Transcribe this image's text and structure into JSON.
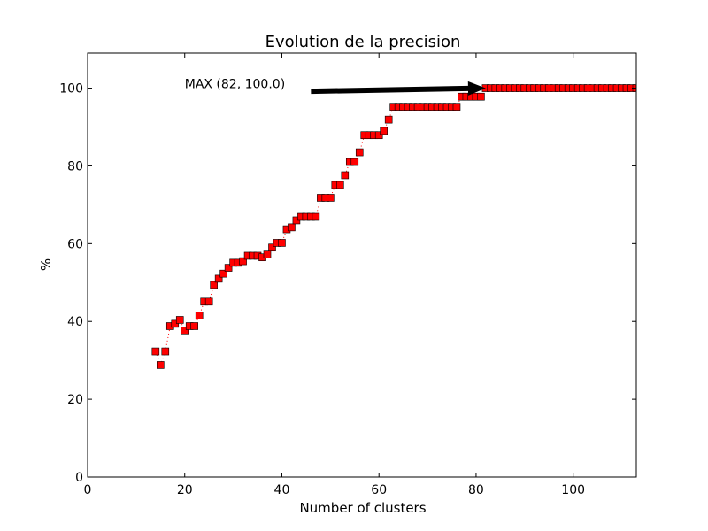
{
  "chart_data": {
    "type": "scatter",
    "title": "Evolution de la precision",
    "xlabel": "Number of clusters",
    "ylabel": "%",
    "xlim": [
      0,
      113
    ],
    "ylim": [
      0,
      109
    ],
    "xticks": [
      0,
      20,
      40,
      60,
      80,
      100
    ],
    "yticks": [
      0,
      20,
      40,
      60,
      80,
      100
    ],
    "grid": false,
    "marker_color": "#ff0000",
    "line_color": "#ff0000",
    "line_style": "dotted",
    "annotation": {
      "text": "MAX (82, 100.0)",
      "xy": [
        82,
        100.0
      ],
      "text_xy": [
        20,
        100.0
      ],
      "arrow_start": [
        46,
        99.2
      ]
    },
    "x": [
      14,
      15,
      16,
      17,
      18,
      19,
      20,
      21,
      22,
      23,
      24,
      25,
      26,
      27,
      28,
      29,
      30,
      31,
      32,
      33,
      34,
      35,
      36,
      37,
      38,
      39,
      40,
      41,
      42,
      43,
      44,
      45,
      46,
      47,
      48,
      49,
      50,
      51,
      52,
      53,
      54,
      55,
      56,
      57,
      58,
      59,
      60,
      61,
      62,
      63,
      64,
      65,
      66,
      67,
      68,
      69,
      70,
      71,
      72,
      73,
      74,
      75,
      76,
      77,
      78,
      79,
      80,
      81,
      82,
      83,
      84,
      85,
      86,
      87,
      88,
      89,
      90,
      91,
      92,
      93,
      94,
      95,
      96,
      97,
      98,
      99,
      100,
      101,
      102,
      103,
      104,
      105,
      106,
      107,
      108,
      109,
      110,
      111,
      112,
      113
    ],
    "y": [
      32.3,
      28.8,
      32.3,
      38.8,
      39.4,
      40.4,
      37.7,
      38.8,
      38.8,
      41.5,
      45.1,
      45.1,
      49.4,
      51.0,
      52.3,
      53.8,
      55.1,
      55.1,
      55.5,
      56.9,
      56.9,
      56.9,
      56.5,
      57.2,
      59.0,
      60.2,
      60.2,
      63.7,
      64.2,
      66.0,
      66.9,
      66.9,
      66.9,
      66.9,
      71.8,
      71.8,
      71.8,
      75.1,
      75.1,
      77.6,
      81.0,
      81.0,
      83.5,
      87.9,
      87.9,
      87.9,
      87.9,
      89.0,
      91.9,
      95.2,
      95.2,
      95.2,
      95.2,
      95.2,
      95.2,
      95.2,
      95.2,
      95.2,
      95.2,
      95.2,
      95.2,
      95.2,
      95.2,
      97.8,
      97.8,
      97.8,
      97.8,
      97.8,
      100.0,
      100.0,
      100.0,
      100.0,
      100.0,
      100.0,
      100.0,
      100.0,
      100.0,
      100.0,
      100.0,
      100.0,
      100.0,
      100.0,
      100.0,
      100.0,
      100.0,
      100.0,
      100.0,
      100.0,
      100.0,
      100.0,
      100.0,
      100.0,
      100.0,
      100.0,
      100.0,
      100.0,
      100.0,
      100.0,
      100.0,
      100.0
    ]
  }
}
